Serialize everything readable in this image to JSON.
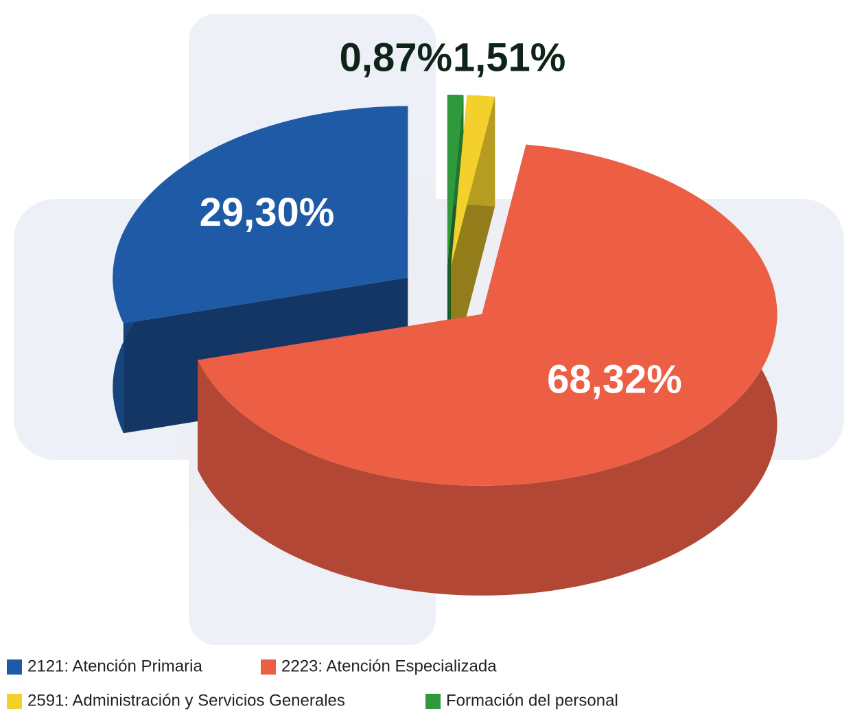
{
  "chart_data": {
    "type": "pie",
    "categories": [
      "2121: Atención Primaria",
      "2223: Atención Especializada",
      "2591: Administración y Servicios Generales",
      "Formación del personal"
    ],
    "values": [
      29.3,
      68.32,
      1.51,
      0.87
    ],
    "value_labels": [
      "29,30%",
      "68,32%",
      "1,51%",
      "0,87%"
    ],
    "colors": [
      "#1f5aa6",
      "#ec5f45",
      "#f3d02c",
      "#2f9a3c"
    ],
    "legend": "bottom"
  }
}
